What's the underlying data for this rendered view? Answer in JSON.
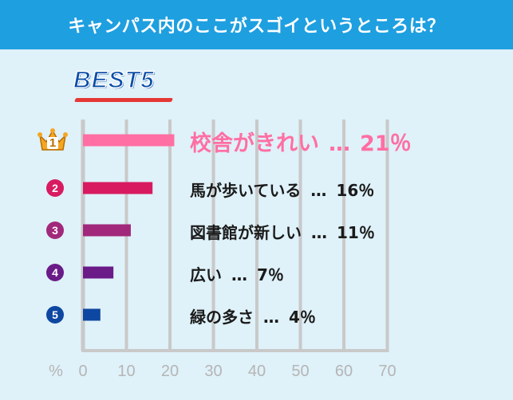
{
  "header": {
    "title": "キャンパス内のここがスゴイというところは？"
  },
  "badge": {
    "text": "BEST5"
  },
  "chart_data": {
    "type": "bar",
    "orientation": "horizontal",
    "xlabel": "%",
    "xlim": [
      0,
      70
    ],
    "xticks": [
      "0",
      "10",
      "20",
      "30",
      "40",
      "50",
      "60",
      "70"
    ],
    "grid": true,
    "categories": [
      "校舎がきれい",
      "馬が歩いている",
      "図書館が新しい",
      "広い",
      "緑の多さ"
    ],
    "values": [
      21,
      16,
      11,
      7,
      4
    ],
    "ranks": [
      "1",
      "2",
      "3",
      "4",
      "5"
    ],
    "value_labels": [
      "21％",
      "16％",
      "11％",
      "7％",
      "4％"
    ],
    "separators": [
      "…",
      "…",
      "…",
      "…",
      "…"
    ],
    "bar_colors": [
      "#ff6fa3",
      "#d81b60",
      "#a1287a",
      "#6a1b88",
      "#0d47a1"
    ],
    "rank_colors": [
      "#f5a623",
      "#d81b60",
      "#a1287a",
      "#6a1b88",
      "#0d47a1"
    ]
  }
}
